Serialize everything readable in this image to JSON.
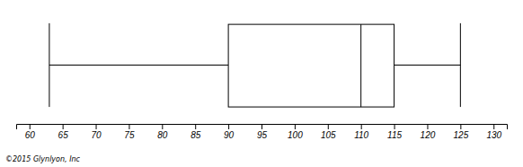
{
  "chart_data": {
    "type": "box",
    "min": 63,
    "q1": 90,
    "median": 110,
    "q3": 115,
    "max": 125,
    "xlim": [
      58,
      132
    ],
    "xticks": [
      60,
      65,
      70,
      75,
      80,
      85,
      90,
      95,
      100,
      105,
      110,
      115,
      120,
      125,
      130
    ],
    "annotations": [
      "©2015 Glynlyon, Inc"
    ]
  }
}
